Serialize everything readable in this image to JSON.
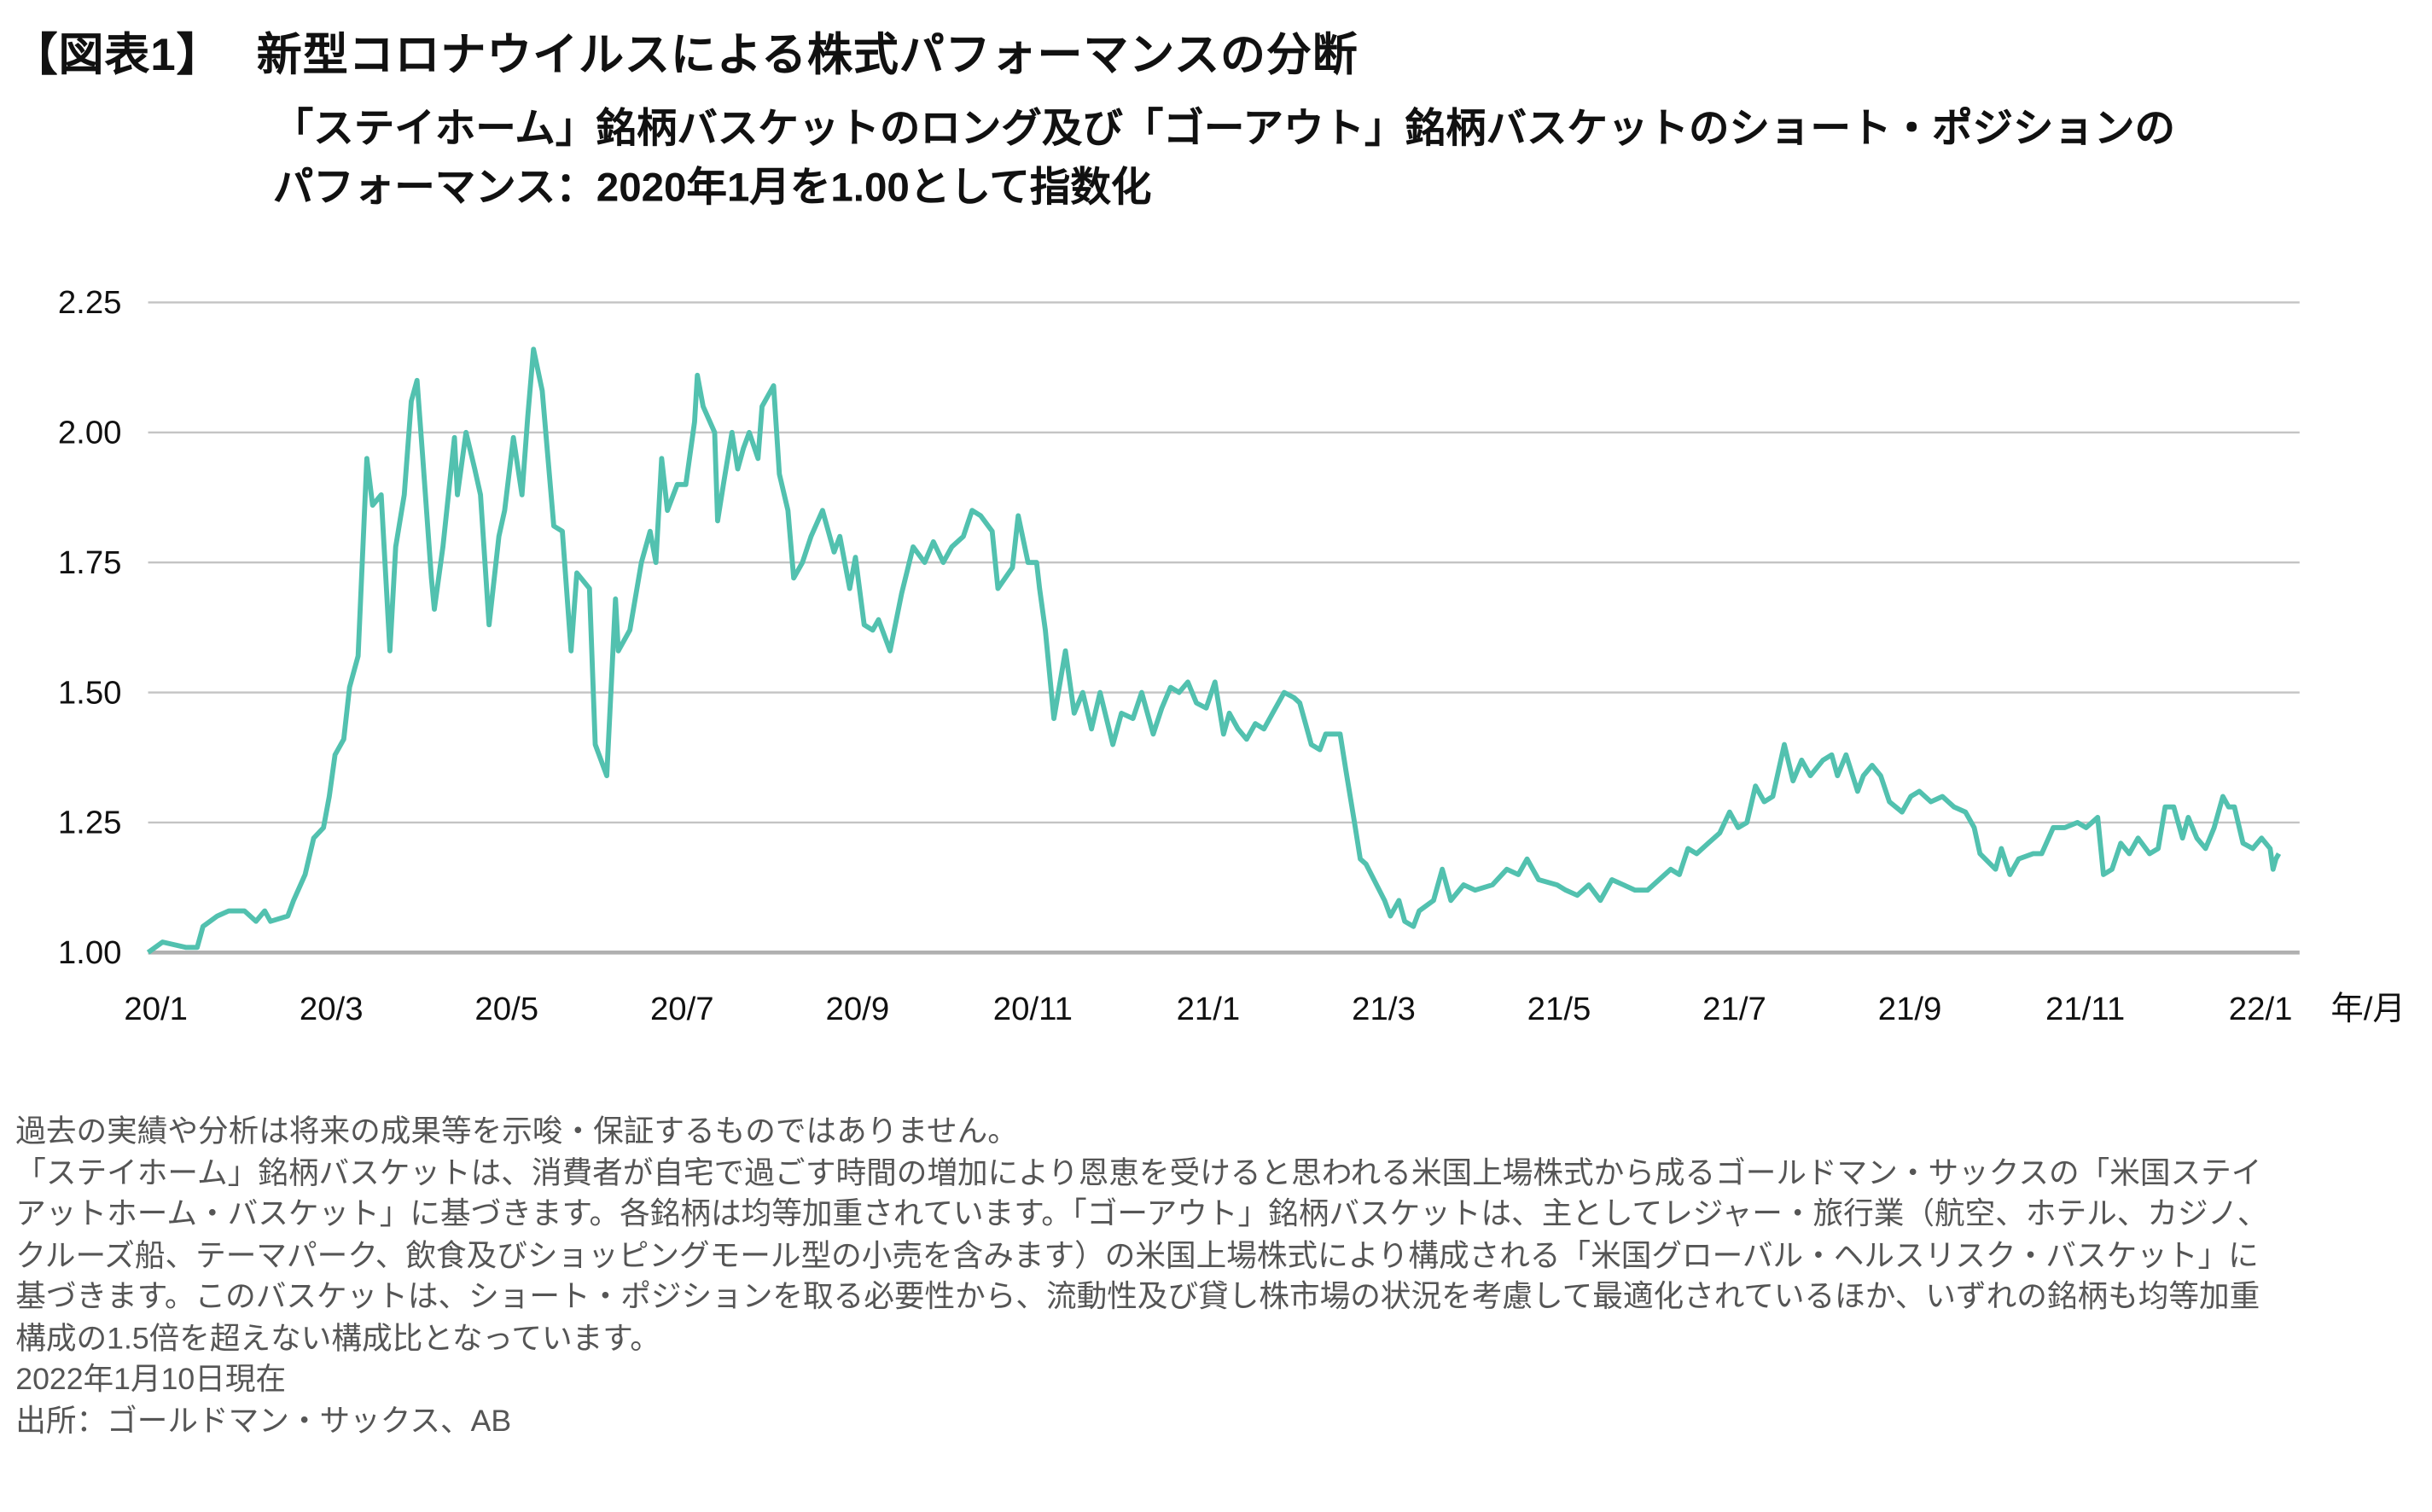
{
  "header": {
    "figure_no": "【図表1】",
    "title": "新型コロナウイルスによる株式パフォーマンスの分断",
    "subtitle_line1": "「ステイホーム」銘柄バスケットのロング及び「ゴーアウト」銘柄バスケットのショート・ポジションの",
    "subtitle_line2": "パフォーマンス：2020年1月を1.00として指数化"
  },
  "chart_data": {
    "type": "line",
    "title": "",
    "xlabel": "年/月",
    "ylabel": "",
    "ylim": [
      1.0,
      2.25
    ],
    "xlim": [
      "2020-01-01",
      "2022-01-10"
    ],
    "grid": true,
    "line_color": "#52c1af",
    "y_ticks": [
      "1.00",
      "1.25",
      "1.50",
      "1.75",
      "2.00",
      "2.25"
    ],
    "x_ticks": [
      {
        "label": "20/1",
        "date": "2020-01-01"
      },
      {
        "label": "20/3",
        "date": "2020-03-01"
      },
      {
        "label": "20/5",
        "date": "2020-05-01"
      },
      {
        "label": "20/7",
        "date": "2020-07-01"
      },
      {
        "label": "20/9",
        "date": "2020-09-01"
      },
      {
        "label": "20/11",
        "date": "2020-11-01"
      },
      {
        "label": "21/1",
        "date": "2021-01-01"
      },
      {
        "label": "21/3",
        "date": "2021-03-01"
      },
      {
        "label": "21/5",
        "date": "2021-05-01"
      },
      {
        "label": "21/7",
        "date": "2021-07-01"
      },
      {
        "label": "21/9",
        "date": "2021-09-01"
      },
      {
        "label": "21/11",
        "date": "2021-11-01"
      },
      {
        "label": "22/1",
        "date": "2022-01-01"
      }
    ],
    "points": [
      [
        "2020-01-01",
        1.0
      ],
      [
        "2020-01-06",
        1.02
      ],
      [
        "2020-01-14",
        1.01
      ],
      [
        "2020-01-18",
        1.01
      ],
      [
        "2020-01-20",
        1.05
      ],
      [
        "2020-01-25",
        1.07
      ],
      [
        "2020-01-29",
        1.08
      ],
      [
        "2020-02-04",
        1.08
      ],
      [
        "2020-02-08",
        1.06
      ],
      [
        "2020-02-11",
        1.08
      ],
      [
        "2020-02-13",
        1.06
      ],
      [
        "2020-02-19",
        1.07
      ],
      [
        "2020-02-21",
        1.1
      ],
      [
        "2020-02-25",
        1.15
      ],
      [
        "2020-02-28",
        1.22
      ],
      [
        "2020-03-01",
        1.24
      ],
      [
        "2020-03-03",
        1.3
      ],
      [
        "2020-03-05",
        1.38
      ],
      [
        "2020-03-08",
        1.41
      ],
      [
        "2020-03-10",
        1.51
      ],
      [
        "2020-03-13",
        1.57
      ],
      [
        "2020-03-16",
        1.95
      ],
      [
        "2020-03-18",
        1.86
      ],
      [
        "2020-03-21",
        1.88
      ],
      [
        "2020-03-24",
        1.58
      ],
      [
        "2020-03-26",
        1.78
      ],
      [
        "2020-03-29",
        1.88
      ],
      [
        "2020-04-01",
        2.06
      ],
      [
        "2020-04-03",
        2.1
      ],
      [
        "2020-04-05",
        1.95
      ],
      [
        "2020-04-08",
        1.72
      ],
      [
        "2020-04-09",
        1.66
      ],
      [
        "2020-04-12",
        1.78
      ],
      [
        "2020-04-16",
        1.99
      ],
      [
        "2020-04-17",
        1.88
      ],
      [
        "2020-04-20",
        2.0
      ],
      [
        "2020-04-23",
        1.93
      ],
      [
        "2020-04-25",
        1.88
      ],
      [
        "2020-04-28",
        1.63
      ],
      [
        "2020-05-01",
        1.8
      ],
      [
        "2020-05-03",
        1.85
      ],
      [
        "2020-05-06",
        1.99
      ],
      [
        "2020-05-09",
        1.88
      ],
      [
        "2020-05-11",
        2.03
      ],
      [
        "2020-05-13",
        2.16
      ],
      [
        "2020-05-16",
        2.08
      ],
      [
        "2020-05-18",
        1.95
      ],
      [
        "2020-05-20",
        1.82
      ],
      [
        "2020-05-23",
        1.81
      ],
      [
        "2020-05-26",
        1.58
      ],
      [
        "2020-05-28",
        1.73
      ],
      [
        "2020-06-02",
        1.7
      ],
      [
        "2020-06-04",
        1.4
      ],
      [
        "2020-06-08",
        1.34
      ],
      [
        "2020-06-11",
        1.68
      ],
      [
        "2020-06-12",
        1.58
      ],
      [
        "2020-06-16",
        1.62
      ],
      [
        "2020-06-20",
        1.75
      ],
      [
        "2020-06-23",
        1.81
      ],
      [
        "2020-06-25",
        1.75
      ],
      [
        "2020-06-27",
        1.95
      ],
      [
        "2020-06-29",
        1.85
      ],
      [
        "2020-07-02",
        1.9
      ],
      [
        "2020-07-05",
        1.9
      ],
      [
        "2020-07-08",
        2.02
      ],
      [
        "2020-07-09",
        2.11
      ],
      [
        "2020-07-11",
        2.05
      ],
      [
        "2020-07-15",
        2.0
      ],
      [
        "2020-07-16",
        1.83
      ],
      [
        "2020-07-18",
        1.9
      ],
      [
        "2020-07-21",
        2.0
      ],
      [
        "2020-07-23",
        1.93
      ],
      [
        "2020-07-25",
        1.97
      ],
      [
        "2020-07-27",
        2.0
      ],
      [
        "2020-07-30",
        1.95
      ],
      [
        "2020-08-01",
        2.05
      ],
      [
        "2020-08-05",
        2.09
      ],
      [
        "2020-08-07",
        1.92
      ],
      [
        "2020-08-10",
        1.85
      ],
      [
        "2020-08-12",
        1.72
      ],
      [
        "2020-08-15",
        1.75
      ],
      [
        "2020-08-18",
        1.8
      ],
      [
        "2020-08-22",
        1.85
      ],
      [
        "2020-08-26",
        1.77
      ],
      [
        "2020-08-28",
        1.8
      ],
      [
        "2020-09-01",
        1.7
      ],
      [
        "2020-09-03",
        1.76
      ],
      [
        "2020-09-06",
        1.63
      ],
      [
        "2020-09-09",
        1.62
      ],
      [
        "2020-09-11",
        1.64
      ],
      [
        "2020-09-15",
        1.58
      ],
      [
        "2020-09-19",
        1.69
      ],
      [
        "2020-09-23",
        1.78
      ],
      [
        "2020-09-27",
        1.75
      ],
      [
        "2020-09-30",
        1.79
      ],
      [
        "2020-10-03",
        1.75
      ],
      [
        "2020-10-06",
        1.78
      ],
      [
        "2020-10-10",
        1.8
      ],
      [
        "2020-10-13",
        1.85
      ],
      [
        "2020-10-16",
        1.84
      ],
      [
        "2020-10-20",
        1.81
      ],
      [
        "2020-10-22",
        1.7
      ],
      [
        "2020-10-27",
        1.74
      ],
      [
        "2020-10-29",
        1.84
      ],
      [
        "2020-11-02",
        1.75
      ],
      [
        "2020-11-05",
        1.75
      ],
      [
        "2020-11-06",
        1.7
      ],
      [
        "2020-11-08",
        1.62
      ],
      [
        "2020-11-11",
        1.45
      ],
      [
        "2020-11-15",
        1.58
      ],
      [
        "2020-11-18",
        1.46
      ],
      [
        "2020-11-21",
        1.5
      ],
      [
        "2020-11-24",
        1.43
      ],
      [
        "2020-11-27",
        1.5
      ],
      [
        "2020-12-01",
        1.4
      ],
      [
        "2020-12-04",
        1.46
      ],
      [
        "2020-12-08",
        1.45
      ],
      [
        "2020-12-11",
        1.5
      ],
      [
        "2020-12-15",
        1.42
      ],
      [
        "2020-12-18",
        1.47
      ],
      [
        "2020-12-21",
        1.51
      ],
      [
        "2020-12-24",
        1.5
      ],
      [
        "2020-12-27",
        1.52
      ],
      [
        "2020-12-30",
        1.48
      ],
      [
        "2021-01-03",
        1.47
      ],
      [
        "2021-01-06",
        1.52
      ],
      [
        "2021-01-09",
        1.42
      ],
      [
        "2021-01-11",
        1.46
      ],
      [
        "2021-01-14",
        1.43
      ],
      [
        "2021-01-17",
        1.41
      ],
      [
        "2021-01-20",
        1.44
      ],
      [
        "2021-01-23",
        1.43
      ],
      [
        "2021-01-26",
        1.46
      ],
      [
        "2021-01-30",
        1.5
      ],
      [
        "2021-02-03",
        1.49
      ],
      [
        "2021-02-05",
        1.48
      ],
      [
        "2021-02-09",
        1.4
      ],
      [
        "2021-02-12",
        1.39
      ],
      [
        "2021-02-14",
        1.42
      ],
      [
        "2021-02-19",
        1.42
      ],
      [
        "2021-02-21",
        1.35
      ],
      [
        "2021-02-24",
        1.25
      ],
      [
        "2021-02-26",
        1.18
      ],
      [
        "2021-02-28",
        1.17
      ],
      [
        "2021-03-04",
        1.1
      ],
      [
        "2021-03-06",
        1.07
      ],
      [
        "2021-03-09",
        1.1
      ],
      [
        "2021-03-11",
        1.06
      ],
      [
        "2021-03-14",
        1.05
      ],
      [
        "2021-03-16",
        1.08
      ],
      [
        "2021-03-21",
        1.1
      ],
      [
        "2021-03-24",
        1.16
      ],
      [
        "2021-03-27",
        1.1
      ],
      [
        "2021-04-01",
        1.13
      ],
      [
        "2021-04-05",
        1.12
      ],
      [
        "2021-04-11",
        1.13
      ],
      [
        "2021-04-16",
        1.16
      ],
      [
        "2021-04-20",
        1.15
      ],
      [
        "2021-04-23",
        1.18
      ],
      [
        "2021-04-27",
        1.14
      ],
      [
        "2021-05-03",
        1.13
      ],
      [
        "2021-05-06",
        1.12
      ],
      [
        "2021-05-10",
        1.11
      ],
      [
        "2021-05-14",
        1.13
      ],
      [
        "2021-05-18",
        1.1
      ],
      [
        "2021-05-22",
        1.14
      ],
      [
        "2021-05-26",
        1.13
      ],
      [
        "2021-05-30",
        1.12
      ],
      [
        "2021-06-04",
        1.12
      ],
      [
        "2021-06-08",
        1.14
      ],
      [
        "2021-06-12",
        1.16
      ],
      [
        "2021-06-15",
        1.15
      ],
      [
        "2021-06-18",
        1.2
      ],
      [
        "2021-06-21",
        1.19
      ],
      [
        "2021-06-25",
        1.21
      ],
      [
        "2021-06-29",
        1.23
      ],
      [
        "2021-07-02",
        1.27
      ],
      [
        "2021-07-05",
        1.24
      ],
      [
        "2021-07-08",
        1.25
      ],
      [
        "2021-07-11",
        1.32
      ],
      [
        "2021-07-14",
        1.29
      ],
      [
        "2021-07-17",
        1.3
      ],
      [
        "2021-07-19",
        1.35
      ],
      [
        "2021-07-21",
        1.4
      ],
      [
        "2021-07-24",
        1.33
      ],
      [
        "2021-07-27",
        1.37
      ],
      [
        "2021-07-30",
        1.34
      ],
      [
        "2021-08-04",
        1.37
      ],
      [
        "2021-08-07",
        1.38
      ],
      [
        "2021-08-09",
        1.34
      ],
      [
        "2021-08-12",
        1.38
      ],
      [
        "2021-08-16",
        1.31
      ],
      [
        "2021-08-18",
        1.34
      ],
      [
        "2021-08-21",
        1.36
      ],
      [
        "2021-08-24",
        1.34
      ],
      [
        "2021-08-27",
        1.29
      ],
      [
        "2021-09-01",
        1.27
      ],
      [
        "2021-09-04",
        1.3
      ],
      [
        "2021-09-07",
        1.31
      ],
      [
        "2021-09-11",
        1.29
      ],
      [
        "2021-09-15",
        1.3
      ],
      [
        "2021-09-19",
        1.28
      ],
      [
        "2021-09-23",
        1.27
      ],
      [
        "2021-09-26",
        1.24
      ],
      [
        "2021-09-28",
        1.19
      ],
      [
        "2021-10-03",
        1.16
      ],
      [
        "2021-10-05",
        1.2
      ],
      [
        "2021-10-08",
        1.15
      ],
      [
        "2021-10-11",
        1.18
      ],
      [
        "2021-10-16",
        1.19
      ],
      [
        "2021-10-19",
        1.19
      ],
      [
        "2021-10-23",
        1.24
      ],
      [
        "2021-10-27",
        1.24
      ],
      [
        "2021-11-01",
        1.25
      ],
      [
        "2021-11-04",
        1.24
      ],
      [
        "2021-11-08",
        1.26
      ],
      [
        "2021-11-10",
        1.15
      ],
      [
        "2021-11-13",
        1.16
      ],
      [
        "2021-11-16",
        1.21
      ],
      [
        "2021-11-19",
        1.19
      ],
      [
        "2021-11-22",
        1.22
      ],
      [
        "2021-11-26",
        1.19
      ],
      [
        "2021-11-29",
        1.2
      ],
      [
        "2021-12-01",
        1.28
      ],
      [
        "2021-12-04",
        1.28
      ],
      [
        "2021-12-07",
        1.22
      ],
      [
        "2021-12-09",
        1.26
      ],
      [
        "2021-12-12",
        1.22
      ],
      [
        "2021-12-15",
        1.2
      ],
      [
        "2021-12-18",
        1.24
      ],
      [
        "2021-12-21",
        1.3
      ],
      [
        "2021-12-23",
        1.28
      ],
      [
        "2021-12-25",
        1.28
      ],
      [
        "2021-12-28",
        1.21
      ],
      [
        "2022-01-01",
        1.2
      ],
      [
        "2022-01-04",
        1.22
      ],
      [
        "2022-01-07",
        1.2
      ],
      [
        "2022-01-08",
        1.16
      ],
      [
        "2022-01-09",
        1.18
      ],
      [
        "2022-01-10",
        1.19
      ]
    ]
  },
  "notes": {
    "lines": [
      "過去の実績や分析は将来の成果等を示唆・保証するものではありません。",
      "「ステイホーム」銘柄バスケットは、消費者が自宅で過ごす時間の増加により恩恵を受けると思われる米国上場株式から成るゴールドマン・サックスの「米国ステイ",
      "アットホーム・バスケット」に基づきます。各銘柄は均等加重されています。「ゴーアウト」銘柄バスケットは、主としてレジャー・旅行業（航空、ホテル、カジノ、",
      "クルーズ船、テーマパーク、飲食及びショッピングモール型の小売を含みます）の米国上場株式により構成される「米国グローバル・ヘルスリスク・バスケット」に",
      "基づきます。このバスケットは、ショート・ポジションを取る必要性から、流動性及び貸し株市場の状況を考慮して最適化されているほか、いずれの銘柄も均等加重",
      "構成の1.5倍を超えない構成比となっています。",
      "2022年1月10日現在",
      "出所：ゴールドマン・サックス、AB"
    ]
  }
}
